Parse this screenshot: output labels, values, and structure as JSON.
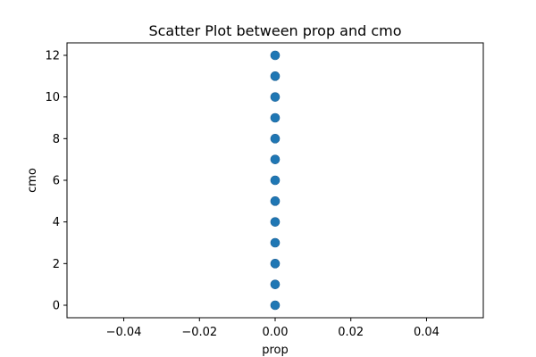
{
  "chart_data": {
    "type": "scatter",
    "title": "Scatter Plot between prop and cmo",
    "xlabel": "prop",
    "ylabel": "cmo",
    "xlim": [
      -0.055,
      0.055
    ],
    "ylim": [
      -0.6,
      12.6
    ],
    "xticks": [
      -0.04,
      -0.02,
      0.0,
      0.02,
      0.04
    ],
    "xtick_labels": [
      "−0.04",
      "−0.02",
      "0.00",
      "0.02",
      "0.04"
    ],
    "yticks": [
      0,
      2,
      4,
      6,
      8,
      10,
      12
    ],
    "ytick_labels": [
      "0",
      "2",
      "4",
      "6",
      "8",
      "10",
      "12"
    ],
    "grid": false,
    "marker_color": "#1f77b4",
    "points": [
      {
        "x": 0,
        "y": 0
      },
      {
        "x": 0,
        "y": 1
      },
      {
        "x": 0,
        "y": 2
      },
      {
        "x": 0,
        "y": 3
      },
      {
        "x": 0,
        "y": 4
      },
      {
        "x": 0,
        "y": 5
      },
      {
        "x": 0,
        "y": 6
      },
      {
        "x": 0,
        "y": 7
      },
      {
        "x": 0,
        "y": 8
      },
      {
        "x": 0,
        "y": 9
      },
      {
        "x": 0,
        "y": 10
      },
      {
        "x": 0,
        "y": 11
      },
      {
        "x": 0,
        "y": 12
      }
    ]
  }
}
